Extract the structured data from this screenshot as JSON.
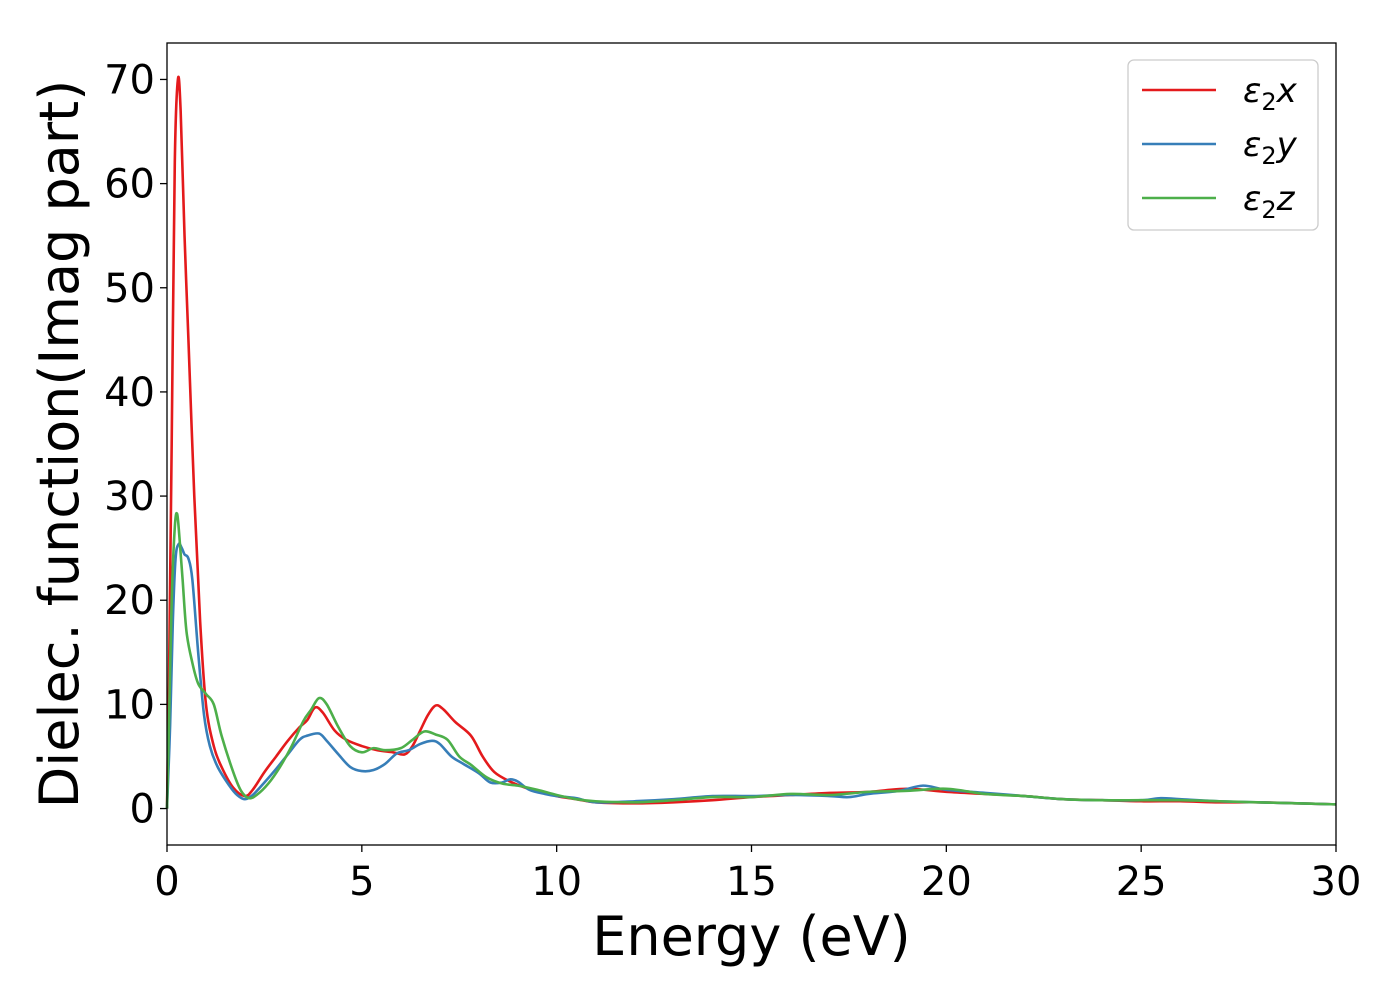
{
  "chart_data": {
    "type": "line",
    "title": "",
    "xlabel": "Energy (eV)",
    "ylabel": "Dielec. function(Imag part)",
    "xlim": [
      0,
      30
    ],
    "ylim": [
      -3.5,
      73.5
    ],
    "xticks": [
      0,
      5,
      10,
      15,
      20,
      25,
      30
    ],
    "yticks": [
      0,
      10,
      20,
      30,
      40,
      50,
      60,
      70
    ],
    "grid": false,
    "legend_position": "top-right",
    "series": [
      {
        "name": "ε₂x",
        "legend_main": "ε",
        "legend_sub": "2",
        "legend_suffix": "x",
        "color": "#e41a1c",
        "points": [
          [
            0,
            0
          ],
          [
            0.05,
            12
          ],
          [
            0.12,
            35
          ],
          [
            0.2,
            62
          ],
          [
            0.28,
            70
          ],
          [
            0.35,
            67
          ],
          [
            0.45,
            55
          ],
          [
            0.55,
            45
          ],
          [
            0.7,
            30
          ],
          [
            0.85,
            18
          ],
          [
            1.0,
            10
          ],
          [
            1.2,
            6
          ],
          [
            1.4,
            4
          ],
          [
            1.7,
            2
          ],
          [
            2.0,
            1.2
          ],
          [
            2.2,
            1.8
          ],
          [
            2.5,
            3.5
          ],
          [
            2.8,
            5
          ],
          [
            3.1,
            6.5
          ],
          [
            3.4,
            7.8
          ],
          [
            3.6,
            8.5
          ],
          [
            3.8,
            9.7
          ],
          [
            4.0,
            9.2
          ],
          [
            4.3,
            7.5
          ],
          [
            4.6,
            6.6
          ],
          [
            5.0,
            6.0
          ],
          [
            5.4,
            5.6
          ],
          [
            5.8,
            5.4
          ],
          [
            6.1,
            5.2
          ],
          [
            6.3,
            6
          ],
          [
            6.5,
            7.5
          ],
          [
            6.7,
            9
          ],
          [
            6.9,
            9.9
          ],
          [
            7.1,
            9.5
          ],
          [
            7.4,
            8.3
          ],
          [
            7.8,
            7
          ],
          [
            8.1,
            5
          ],
          [
            8.4,
            3.5
          ],
          [
            8.8,
            2.6
          ],
          [
            9.2,
            2
          ],
          [
            9.6,
            1.6
          ],
          [
            10,
            1.2
          ],
          [
            10.5,
            0.9
          ],
          [
            11,
            0.6
          ],
          [
            12,
            0.5
          ],
          [
            13,
            0.6
          ],
          [
            14,
            0.8
          ],
          [
            15,
            1.1
          ],
          [
            16,
            1.3
          ],
          [
            17,
            1.5
          ],
          [
            18,
            1.6
          ],
          [
            19,
            1.9
          ],
          [
            20,
            1.6
          ],
          [
            21,
            1.4
          ],
          [
            22,
            1.2
          ],
          [
            23,
            0.9
          ],
          [
            24,
            0.8
          ],
          [
            25,
            0.7
          ],
          [
            26,
            0.7
          ],
          [
            27,
            0.6
          ],
          [
            28,
            0.6
          ],
          [
            29,
            0.5
          ],
          [
            30,
            0.4
          ]
        ]
      },
      {
        "name": "ε₂y",
        "legend_main": "ε",
        "legend_sub": "2",
        "legend_suffix": "y",
        "color": "#377eb8",
        "points": [
          [
            0,
            0
          ],
          [
            0.08,
            8
          ],
          [
            0.15,
            18
          ],
          [
            0.22,
            24
          ],
          [
            0.3,
            25.4
          ],
          [
            0.38,
            25
          ],
          [
            0.45,
            24.4
          ],
          [
            0.55,
            24
          ],
          [
            0.65,
            22
          ],
          [
            0.8,
            15
          ],
          [
            0.95,
            9
          ],
          [
            1.1,
            6
          ],
          [
            1.3,
            4
          ],
          [
            1.6,
            2.2
          ],
          [
            1.8,
            1.3
          ],
          [
            2.0,
            0.9
          ],
          [
            2.2,
            1.3
          ],
          [
            2.5,
            2.5
          ],
          [
            2.8,
            3.8
          ],
          [
            3.1,
            5.2
          ],
          [
            3.4,
            6.6
          ],
          [
            3.6,
            7
          ],
          [
            3.9,
            7.2
          ],
          [
            4.1,
            6.5
          ],
          [
            4.4,
            5.2
          ],
          [
            4.7,
            4.0
          ],
          [
            5.0,
            3.6
          ],
          [
            5.3,
            3.7
          ],
          [
            5.6,
            4.3
          ],
          [
            5.9,
            5.3
          ],
          [
            6.2,
            5.6
          ],
          [
            6.5,
            6.2
          ],
          [
            6.8,
            6.5
          ],
          [
            7.0,
            6.2
          ],
          [
            7.3,
            5
          ],
          [
            7.6,
            4.3
          ],
          [
            8.0,
            3.4
          ],
          [
            8.3,
            2.5
          ],
          [
            8.6,
            2.5
          ],
          [
            8.8,
            2.8
          ],
          [
            9.0,
            2.6
          ],
          [
            9.3,
            1.8
          ],
          [
            9.7,
            1.4
          ],
          [
            10,
            1.2
          ],
          [
            10.5,
            1.0
          ],
          [
            11,
            0.6
          ],
          [
            12,
            0.7
          ],
          [
            13,
            0.9
          ],
          [
            14,
            1.2
          ],
          [
            15,
            1.2
          ],
          [
            16,
            1.3
          ],
          [
            17,
            1.2
          ],
          [
            17.5,
            1.1
          ],
          [
            18,
            1.4
          ],
          [
            18.8,
            1.7
          ],
          [
            19.4,
            2.2
          ],
          [
            20,
            1.8
          ],
          [
            21,
            1.5
          ],
          [
            22,
            1.2
          ],
          [
            23,
            0.9
          ],
          [
            24,
            0.8
          ],
          [
            25,
            0.8
          ],
          [
            25.5,
            1.0
          ],
          [
            26,
            0.9
          ],
          [
            27,
            0.7
          ],
          [
            28,
            0.6
          ],
          [
            29,
            0.5
          ],
          [
            30,
            0.4
          ]
        ]
      },
      {
        "name": "ε₂z",
        "legend_main": "ε",
        "legend_sub": "2",
        "legend_suffix": "z",
        "color": "#4daf4a",
        "points": [
          [
            0,
            0
          ],
          [
            0.05,
            8
          ],
          [
            0.12,
            20
          ],
          [
            0.2,
            27
          ],
          [
            0.26,
            28.3
          ],
          [
            0.32,
            26
          ],
          [
            0.4,
            22
          ],
          [
            0.5,
            17
          ],
          [
            0.65,
            14
          ],
          [
            0.8,
            12
          ],
          [
            1.0,
            11
          ],
          [
            1.2,
            10
          ],
          [
            1.4,
            7
          ],
          [
            1.7,
            3.5
          ],
          [
            1.9,
            1.7
          ],
          [
            2.1,
            1.0
          ],
          [
            2.3,
            1.3
          ],
          [
            2.6,
            2.4
          ],
          [
            2.9,
            4
          ],
          [
            3.2,
            6
          ],
          [
            3.5,
            8.4
          ],
          [
            3.7,
            9.5
          ],
          [
            3.9,
            10.6
          ],
          [
            4.1,
            10
          ],
          [
            4.4,
            7.8
          ],
          [
            4.7,
            6
          ],
          [
            5.0,
            5.4
          ],
          [
            5.3,
            5.8
          ],
          [
            5.6,
            5.6
          ],
          [
            6.0,
            5.8
          ],
          [
            6.3,
            6.6
          ],
          [
            6.6,
            7.4
          ],
          [
            6.9,
            7.1
          ],
          [
            7.2,
            6.6
          ],
          [
            7.5,
            5
          ],
          [
            7.8,
            4.2
          ],
          [
            8.2,
            3
          ],
          [
            8.6,
            2.4
          ],
          [
            9.0,
            2.2
          ],
          [
            9.5,
            1.8
          ],
          [
            10,
            1.3
          ],
          [
            10.5,
            0.9
          ],
          [
            11,
            0.7
          ],
          [
            12,
            0.6
          ],
          [
            13,
            0.8
          ],
          [
            14,
            1.1
          ],
          [
            15,
            1.1
          ],
          [
            16,
            1.4
          ],
          [
            17,
            1.3
          ],
          [
            18,
            1.6
          ],
          [
            19,
            1.7
          ],
          [
            20,
            1.9
          ],
          [
            21,
            1.4
          ],
          [
            22,
            1.2
          ],
          [
            23,
            0.9
          ],
          [
            24,
            0.8
          ],
          [
            25,
            0.8
          ],
          [
            26,
            0.8
          ],
          [
            27,
            0.7
          ],
          [
            28,
            0.6
          ],
          [
            29,
            0.5
          ],
          [
            30,
            0.4
          ]
        ]
      }
    ]
  }
}
